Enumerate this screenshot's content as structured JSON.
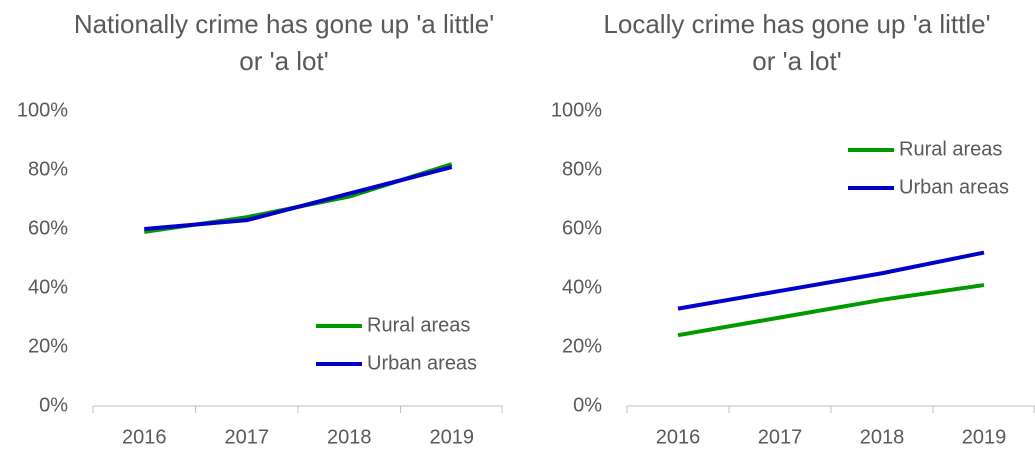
{
  "chart_data": [
    {
      "type": "line",
      "title": "Nationally crime has gone up 'a little' or 'a lot'",
      "categories": [
        "2016",
        "2017",
        "2018",
        "2019"
      ],
      "series": [
        {
          "name": "Rural areas",
          "color": "#009900",
          "values": [
            59,
            64,
            71,
            82
          ]
        },
        {
          "name": "Urban areas",
          "color": "#0000cc",
          "values": [
            60,
            63,
            72,
            81
          ]
        }
      ],
      "ylim": [
        0,
        100
      ],
      "yticks": [
        {
          "value": 0,
          "label": "0%"
        },
        {
          "value": 20,
          "label": "20%"
        },
        {
          "value": 40,
          "label": "40%"
        },
        {
          "value": 60,
          "label": "60%"
        },
        {
          "value": 80,
          "label": "80%"
        },
        {
          "value": 100,
          "label": "100%"
        }
      ],
      "legend": "lower right",
      "grid": false
    },
    {
      "type": "line",
      "title": "Locally crime has gone up 'a little' or 'a lot'",
      "categories": [
        "2016",
        "2017",
        "2018",
        "2019"
      ],
      "series": [
        {
          "name": "Rural areas",
          "color": "#009900",
          "values": [
            24,
            30,
            36,
            41
          ]
        },
        {
          "name": "Urban areas",
          "color": "#0000cc",
          "values": [
            33,
            39,
            45,
            52
          ]
        }
      ],
      "ylim": [
        0,
        100
      ],
      "yticks": [
        {
          "value": 0,
          "label": "0%"
        },
        {
          "value": 20,
          "label": "20%"
        },
        {
          "value": 40,
          "label": "40%"
        },
        {
          "value": 60,
          "label": "60%"
        },
        {
          "value": 80,
          "label": "80%"
        },
        {
          "value": 100,
          "label": "100%"
        }
      ],
      "legend": "upper right",
      "grid": false
    }
  ]
}
